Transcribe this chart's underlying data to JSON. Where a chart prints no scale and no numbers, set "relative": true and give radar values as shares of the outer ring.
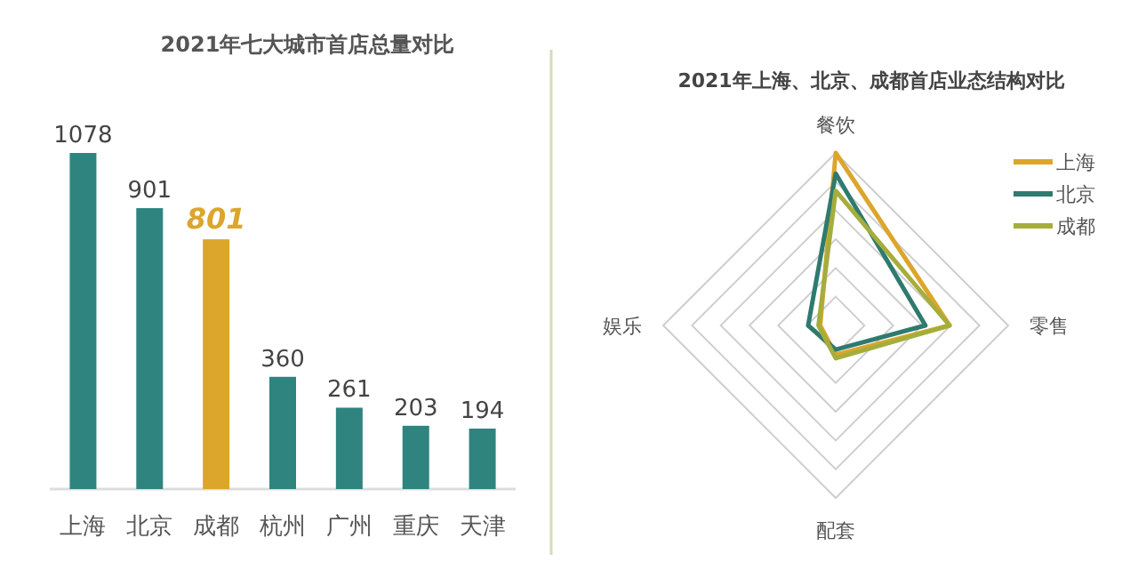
{
  "chart_data": [
    {
      "type": "bar",
      "title": "2021年七大城市首店总量对比",
      "categories": [
        "上海",
        "北京",
        "成都",
        "杭州",
        "广州",
        "重庆",
        "天津"
      ],
      "values": [
        1078,
        901,
        801,
        360,
        261,
        203,
        194
      ],
      "colors": [
        "#2f8480",
        "#2f8480",
        "#dca62c",
        "#2f8480",
        "#2f8480",
        "#2f8480",
        "#2f8480"
      ],
      "data_labels": true
    },
    {
      "type": "radar",
      "title": "2021年上海、北京、成都首店业态结构对比",
      "categories": [
        "餐饮",
        "零售",
        "配套",
        "娱乐"
      ],
      "relative": true,
      "legend": "top right",
      "series": [
        {
          "name": "上海",
          "color": "#dca62c",
          "values": [
            1.0,
            0.66,
            0.17,
            0.09
          ]
        },
        {
          "name": "北京",
          "color": "#2f7a6e",
          "values": [
            0.88,
            0.52,
            0.14,
            0.16
          ]
        },
        {
          "name": "成都",
          "color": "#a5ad3c",
          "values": [
            0.78,
            0.66,
            0.19,
            0.1
          ]
        }
      ]
    }
  ]
}
